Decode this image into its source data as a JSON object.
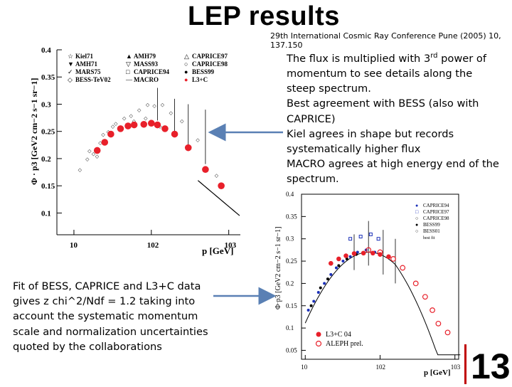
{
  "slide": {
    "title": "LEP results",
    "citation": "29th International Cosmic Ray Conference Pune (2005) 10, 137.150",
    "description": {
      "line1_before": "The flux is multiplied with 3",
      "line1_sup": "rd",
      "line1_after": " power of",
      "rest": [
        "momentum to see details along the",
        "steep spectrum.",
        "Best agreement with BESS (also with",
        "CAPRICE)",
        "Kiel agrees in shape but records",
        "systematically  higher flux",
        "MACRO agrees at high energy end of the",
        "spectrum."
      ]
    },
    "fit_text": [
      "Fit of BESS, CAPRICE and L3+C data",
      "gives z chi^2/Ndf = 1.2 taking into",
      "account the systematic momentum",
      "scale and normalization uncertainties",
      "quoted by the collaborations"
    ],
    "page_number": "13",
    "colors": {
      "red_marker": "#e8202a",
      "blue_marker": "#1a2fb8",
      "arrow": "#5a80b4",
      "accent_bar": "#c00000"
    }
  },
  "chart_data": [
    {
      "type": "scatter",
      "ylabel": "Φ · p3 [GeV2 cm−2 s−1 sr−1]",
      "xlabel": "p [GeV]",
      "yticks": [
        "0.4",
        "0.35",
        "0.3",
        "0.25",
        "0.2",
        "0.15",
        "0.1"
      ],
      "xticks": [
        "10",
        "102",
        "103"
      ],
      "ylim": [
        0.06,
        0.4
      ],
      "legend": [
        "Kiel71",
        "AMH79",
        "CAPRICE97",
        "AMH71",
        "MASS93",
        "CAPRICE98",
        "MARS75",
        "CAPRICE94",
        "BESS99",
        "BESS-TeV02",
        "MACRO",
        "L3+C"
      ],
      "series": [
        {
          "name": "L3+C",
          "x": [
            20,
            25,
            30,
            40,
            50,
            60,
            80,
            100,
            120,
            150,
            200,
            300,
            500,
            800
          ],
          "y": [
            0.215,
            0.23,
            0.245,
            0.255,
            0.26,
            0.262,
            0.263,
            0.265,
            0.262,
            0.255,
            0.245,
            0.22,
            0.18,
            0.15
          ]
        }
      ]
    },
    {
      "type": "scatter",
      "ylabel": "Φ·p3 [GeV2 cm−2 s−1 sr−1]",
      "xlabel": "p [GeV]",
      "yticks": [
        "0.4",
        "0.35",
        "0.3",
        "0.25",
        "0.2",
        "0.15",
        "0.1",
        "0.05"
      ],
      "xticks": [
        "10",
        "102",
        "103"
      ],
      "ylim": [
        0.03,
        0.4
      ],
      "legend": [
        "CAPRICE94",
        "CAPRICE97",
        "CAPRICE98",
        "BESS99",
        "BESS01",
        "L3+C 04",
        "ALEPH prel."
      ],
      "legend_note": "best fit",
      "series": [
        {
          "name": "L3+C 04",
          "x": [
            22,
            28,
            35,
            45,
            60,
            80,
            100,
            130
          ],
          "y": [
            0.245,
            0.255,
            0.262,
            0.267,
            0.268,
            0.268,
            0.265,
            0.26
          ]
        },
        {
          "name": "ALEPH prel.",
          "x": [
            70,
            100,
            150,
            200,
            300,
            400,
            500,
            600,
            800
          ],
          "y": [
            0.275,
            0.27,
            0.255,
            0.235,
            0.2,
            0.17,
            0.14,
            0.11,
            0.09
          ]
        }
      ]
    }
  ]
}
